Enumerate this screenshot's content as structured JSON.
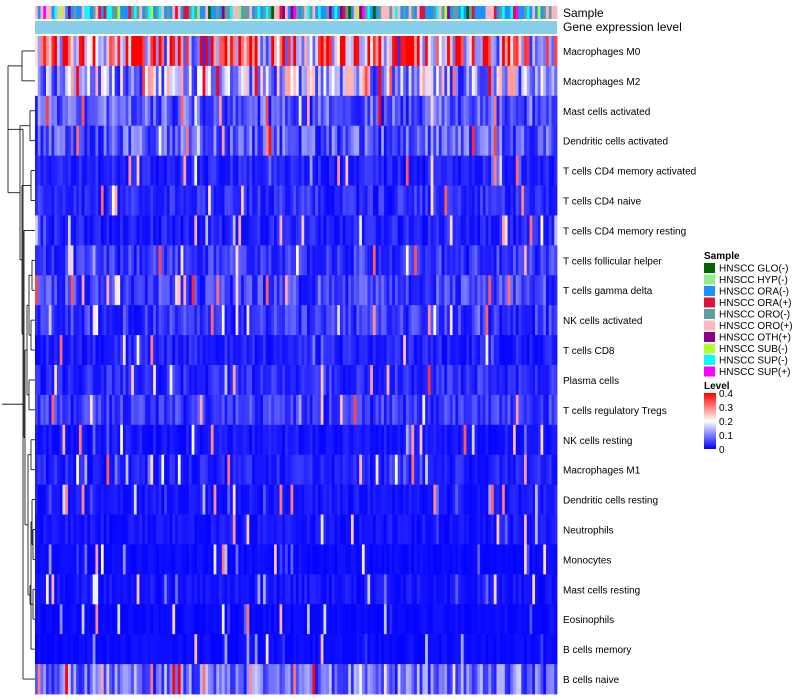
{
  "chart_data": {
    "type": "heatmap",
    "annotation_labels": [
      "Sample",
      "Gene expression level"
    ],
    "rows": [
      "Macrophages M0",
      "Macrophages M2",
      "Mast cells activated",
      "Dendritic cells activated",
      "T cells CD4 memory activated",
      "T cells CD4 naive",
      "T cells CD4 memory resting",
      "T cells follicular helper",
      "T cells gamma delta",
      "NK cells activated",
      "T cells CD8",
      "Plasma cells",
      "T cells regulatory  Tregs",
      "NK cells resting",
      "Macrophages M1",
      "Dendritic cells resting",
      "Neutrophils",
      "Monocytes",
      "Mast cells resting",
      "Eosinophils",
      "B cells memory",
      "B cells naive"
    ],
    "row_mean_levels": [
      0.32,
      0.17,
      0.08,
      0.08,
      0.03,
      0.04,
      0.03,
      0.05,
      0.06,
      0.05,
      0.03,
      0.04,
      0.05,
      0.02,
      0.03,
      0.02,
      0.02,
      0.01,
      0.02,
      0.01,
      0.01,
      0.1
    ],
    "num_samples": 190,
    "sample_legend": {
      "title": "Sample",
      "items": [
        {
          "label": "HNSCC GLO(-)",
          "color": "#006400"
        },
        {
          "label": "HNSCC HYP(-)",
          "color": "#90ee90"
        },
        {
          "label": "HNSCC ORA(-)",
          "color": "#1e90ff"
        },
        {
          "label": "HNSCC ORA(+)",
          "color": "#dc143c"
        },
        {
          "label": "HNSCC ORO(-)",
          "color": "#5f9ea0"
        },
        {
          "label": "HNSCC ORO(+)",
          "color": "#ffb6c1"
        },
        {
          "label": "HNSCC OTH(+)",
          "color": "#8b008b"
        },
        {
          "label": "HNSCC SUB(-)",
          "color": "#adff2f"
        },
        {
          "label": "HNSCC SUP(-)",
          "color": "#00ffff"
        },
        {
          "label": "HNSCC SUP(+)",
          "color": "#ff00ff"
        }
      ]
    },
    "level_legend": {
      "title": "Level",
      "ticks": [
        "0.4",
        "0.3",
        "0.2",
        "0.1",
        "0"
      ],
      "tick_values": [
        0.4,
        0.3,
        0.2,
        0.1,
        0
      ],
      "range": [
        0,
        0.4
      ],
      "colors": {
        "low": "#0000ff",
        "mid": "#ffffff",
        "high": "#ff0000"
      }
    },
    "gene_expression_bar_color": "#87ceeb"
  }
}
